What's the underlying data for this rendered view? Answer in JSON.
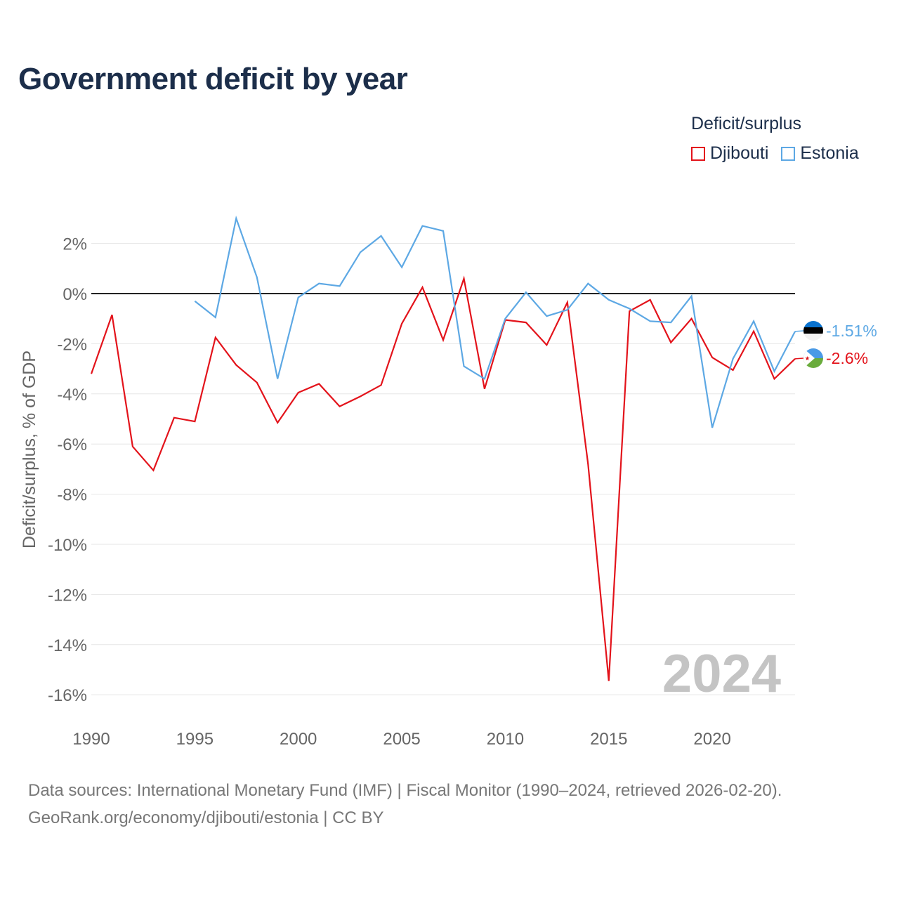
{
  "title": "Government deficit by year",
  "legend_title": "Deficit/surplus",
  "sources": {
    "line1": "Data sources: International Monetary Fund (IMF) | Fiscal Monitor (1990–2024, retrieved 2026-02-20).",
    "line2": "GeoRank.org/economy/djibouti/estonia | CC BY"
  },
  "chart_data": {
    "type": "line",
    "title": "Government deficit by year",
    "xlabel": "",
    "ylabel": "Deficit/surplus, % of GDP",
    "xlim": [
      1990,
      2024
    ],
    "ylim": [
      -17,
      3.5
    ],
    "x_ticks": [
      1990,
      1995,
      2000,
      2005,
      2010,
      2015,
      2020
    ],
    "y_ticks": [
      2,
      0,
      -2,
      -4,
      -6,
      -8,
      -10,
      -12,
      -14,
      -16
    ],
    "y_tick_labels": [
      "2%",
      "0%",
      "-2%",
      "-4%",
      "-6%",
      "-8%",
      "-10%",
      "-12%",
      "-14%",
      "-16%"
    ],
    "x_tick_labels": [
      "1990",
      "1995",
      "2000",
      "2005",
      "2010",
      "2015",
      "2020"
    ],
    "watermark_year": "2024",
    "legend_position": "top-right",
    "series": [
      {
        "name": "Djibouti",
        "color": "#e3131b",
        "end_label": "-2.6%",
        "flag_icon": "djibouti-flag-icon",
        "x": [
          1990,
          1991,
          1992,
          1993,
          1994,
          1995,
          1996,
          1997,
          1998,
          1999,
          2000,
          2001,
          2002,
          2003,
          2004,
          2005,
          2006,
          2007,
          2008,
          2009,
          2010,
          2011,
          2012,
          2013,
          2014,
          2015,
          2016,
          2017,
          2018,
          2019,
          2020,
          2021,
          2022,
          2023,
          2024
        ],
        "values": [
          -3.2,
          -0.85,
          -6.1,
          -7.05,
          -4.95,
          -5.1,
          -1.75,
          -2.85,
          -3.55,
          -5.15,
          -3.95,
          -3.6,
          -4.5,
          -4.1,
          -3.65,
          -1.2,
          0.25,
          -1.85,
          0.6,
          -3.8,
          -1.05,
          -1.15,
          -2.05,
          -0.35,
          -6.8,
          -15.45,
          -0.7,
          -0.25,
          -1.95,
          -1.0,
          -2.55,
          -3.05,
          -1.5,
          -3.4,
          -2.6
        ]
      },
      {
        "name": "Estonia",
        "color": "#5da8e4",
        "end_label": "-1.51%",
        "flag_icon": "estonia-flag-icon",
        "x": [
          1995,
          1996,
          1997,
          1998,
          1999,
          2000,
          2001,
          2002,
          2003,
          2004,
          2005,
          2006,
          2007,
          2008,
          2009,
          2010,
          2011,
          2012,
          2013,
          2014,
          2015,
          2016,
          2017,
          2018,
          2019,
          2020,
          2021,
          2022,
          2023,
          2024
        ],
        "values": [
          -0.3,
          -0.95,
          3.0,
          0.65,
          -3.4,
          -0.15,
          0.4,
          0.3,
          1.65,
          2.3,
          1.05,
          2.7,
          2.5,
          -2.9,
          -3.4,
          -1.0,
          0.05,
          -0.9,
          -0.65,
          0.4,
          -0.25,
          -0.6,
          -1.1,
          -1.15,
          -0.1,
          -5.35,
          -2.6,
          -1.1,
          -3.1,
          -1.51
        ]
      }
    ]
  }
}
